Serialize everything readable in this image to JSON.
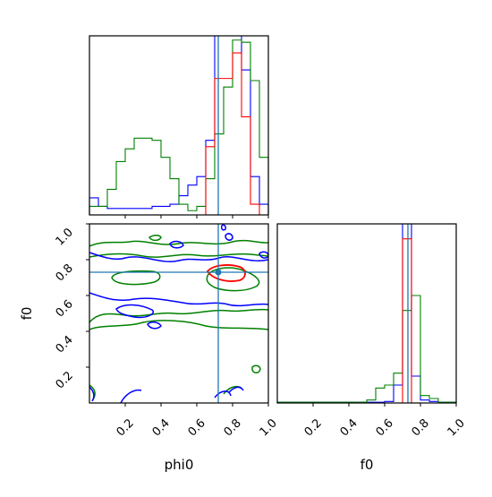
{
  "chart_data": {
    "type": "corner",
    "parameters": [
      "phi0",
      "f0"
    ],
    "x_axis_labels": [
      "phi0",
      "f0"
    ],
    "y_axis_labels": [
      "f0"
    ],
    "truth": {
      "phi0": 0.72,
      "f0": 0.73
    },
    "truth_color": "#1f77b4",
    "panels": [
      {
        "id": "phi0-marginal",
        "type": "step-histogram",
        "xlim": [
          0.0,
          1.0
        ],
        "series": [
          {
            "color": "#0000ff",
            "bins": [
              0.0,
              0.05,
              0.1,
              0.15,
              0.2,
              0.25,
              0.3,
              0.35,
              0.4,
              0.45,
              0.5,
              0.55,
              0.6,
              0.65,
              0.7,
              0.75,
              0.8,
              0.85,
              0.9,
              0.95,
              1.0
            ],
            "values": [
              0.08,
              0.04,
              0.03,
              0.03,
              0.03,
              0.03,
              0.03,
              0.04,
              0.04,
              0.05,
              0.09,
              0.14,
              0.18,
              0.35,
              1.05,
              0.95,
              1.05,
              0.68,
              0.18,
              0.05
            ]
          },
          {
            "color": "#008000",
            "bins": [
              0.0,
              0.05,
              0.1,
              0.15,
              0.2,
              0.25,
              0.3,
              0.35,
              0.4,
              0.45,
              0.5,
              0.55,
              0.6,
              0.65,
              0.7,
              0.75,
              0.8,
              0.85,
              0.9,
              0.95,
              1.0
            ],
            "values": [
              0.04,
              0.04,
              0.12,
              0.25,
              0.31,
              0.36,
              0.36,
              0.35,
              0.27,
              0.17,
              0.05,
              0.02,
              0.04,
              0.17,
              0.38,
              0.6,
              0.82,
              0.81,
              0.63,
              0.27
            ]
          },
          {
            "color": "#ff0000",
            "bins": [
              0.0,
              0.05,
              0.1,
              0.15,
              0.2,
              0.25,
              0.3,
              0.35,
              0.4,
              0.45,
              0.5,
              0.55,
              0.6,
              0.65,
              0.7,
              0.75,
              0.8,
              0.85,
              0.9,
              0.95,
              1.0
            ],
            "values": [
              0,
              0,
              0,
              0,
              0,
              0,
              0,
              0,
              0,
              0,
              0,
              0,
              0,
              0.32,
              0.64,
              0.64,
              0.76,
              0.46,
              0.05,
              0
            ]
          }
        ]
      },
      {
        "id": "phi0-f0-joint",
        "type": "contour",
        "xlim": [
          0.0,
          1.0
        ],
        "ylim": [
          0.0,
          1.0
        ],
        "xticks": [
          "0.2",
          "0.4",
          "0.6",
          "0.8",
          "1.0"
        ],
        "yticks": [
          "0.2",
          "0.4",
          "0.6",
          "0.8",
          "1.0"
        ],
        "series_colors": [
          "#0000ff",
          "#008000",
          "#ff0000"
        ]
      },
      {
        "id": "f0-marginal",
        "type": "step-histogram",
        "xlim": [
          0.0,
          1.0
        ],
        "xticks": [
          "0.2",
          "0.4",
          "0.6",
          "0.8",
          "1.0"
        ],
        "series": [
          {
            "color": "#0000ff",
            "bins": [
              0.0,
              0.05,
              0.1,
              0.15,
              0.2,
              0.25,
              0.3,
              0.35,
              0.4,
              0.45,
              0.5,
              0.55,
              0.6,
              0.65,
              0.7,
              0.75,
              0.8,
              0.85,
              0.9,
              0.95,
              1.0
            ],
            "values": [
              0.005,
              0.005,
              0.005,
              0.005,
              0.005,
              0.005,
              0.005,
              0.005,
              0.005,
              0.005,
              0.005,
              0.005,
              0.01,
              0.12,
              1.7,
              0.18,
              0.02,
              0.01,
              0.005,
              0.005
            ]
          },
          {
            "color": "#008000",
            "bins": [
              0.0,
              0.05,
              0.1,
              0.15,
              0.2,
              0.25,
              0.3,
              0.35,
              0.4,
              0.45,
              0.5,
              0.55,
              0.6,
              0.65,
              0.7,
              0.75,
              0.8,
              0.85,
              0.9,
              0.95,
              1.0
            ],
            "values": [
              0.005,
              0.005,
              0.005,
              0.005,
              0.005,
              0.005,
              0.005,
              0.005,
              0.005,
              0.005,
              0.02,
              0.1,
              0.12,
              0.2,
              0.62,
              0.72,
              0.05,
              0.03,
              0.005,
              0.005
            ]
          },
          {
            "color": "#ff0000",
            "bins": [
              0.0,
              0.05,
              0.1,
              0.15,
              0.2,
              0.25,
              0.3,
              0.35,
              0.4,
              0.45,
              0.5,
              0.55,
              0.6,
              0.65,
              0.7,
              0.75,
              0.8,
              0.85,
              0.9,
              0.95,
              1.0
            ],
            "values": [
              0,
              0,
              0,
              0,
              0,
              0,
              0,
              0,
              0,
              0,
              0,
              0,
              0,
              0,
              1.1,
              0,
              0,
              0,
              0,
              0
            ]
          }
        ]
      }
    ]
  }
}
